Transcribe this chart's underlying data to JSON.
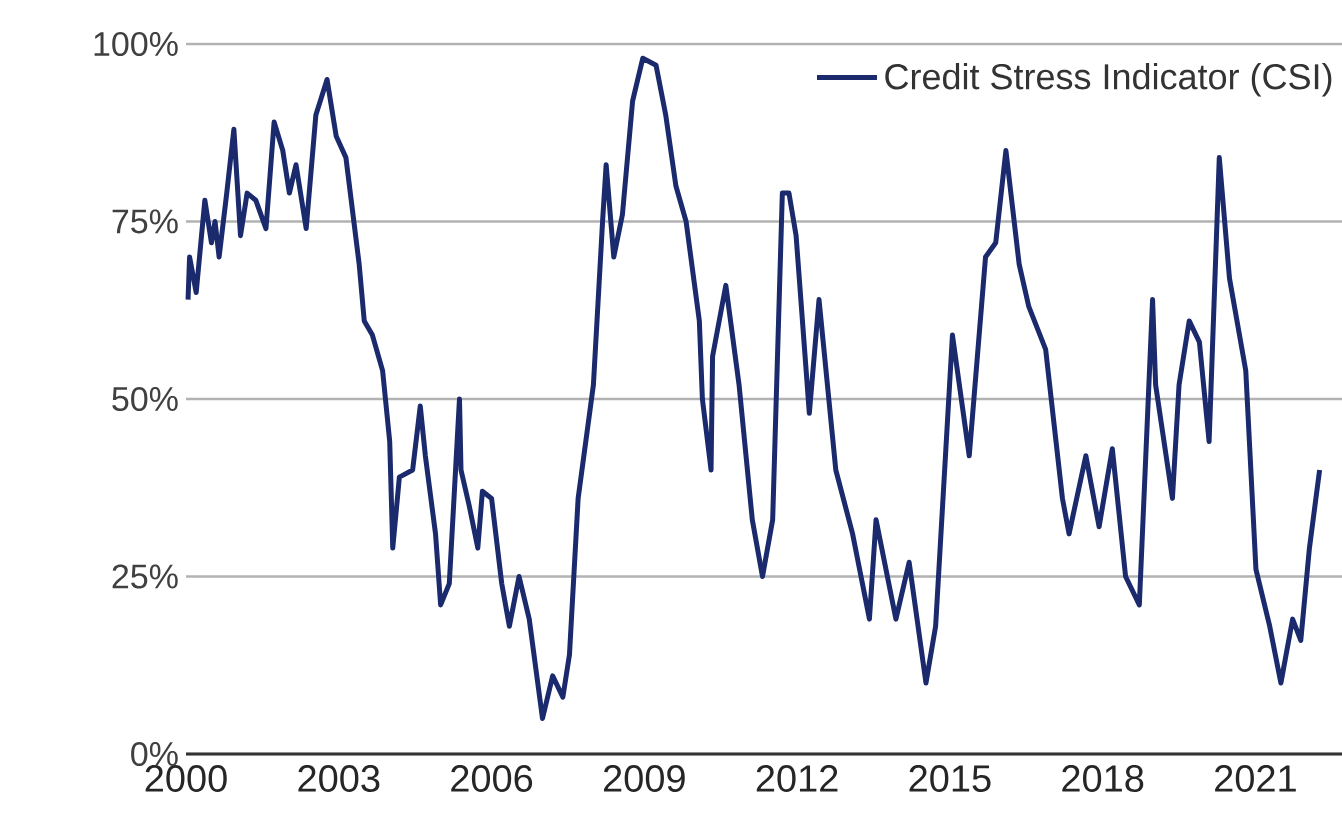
{
  "chart_data": {
    "type": "line",
    "xlim": [
      2000,
      2022.7
    ],
    "ylim": [
      0,
      100
    ],
    "xticks": [
      2000,
      2003,
      2006,
      2009,
      2012,
      2015,
      2018,
      2021
    ],
    "yticks": [
      {
        "value": 0,
        "label": "0%"
      },
      {
        "value": 25,
        "label": "25%"
      },
      {
        "value": 50,
        "label": "50%"
      },
      {
        "value": 75,
        "label": "75%"
      },
      {
        "value": 100,
        "label": "100%"
      }
    ],
    "grid": "y",
    "legend": "top right",
    "line_style": "solid",
    "marker": "none",
    "series": [
      {
        "name": "Credit Stress Indicator (CSI)",
        "color": "#1a2a6c",
        "x": [
          2000.04,
          2000.07,
          2000.2,
          2000.37,
          2000.5,
          2000.57,
          2000.65,
          2000.8,
          2000.94,
          2001.07,
          2001.2,
          2001.37,
          2001.57,
          2001.73,
          2001.9,
          2002.03,
          2002.16,
          2002.36,
          2002.55,
          2002.77,
          2002.95,
          2003.14,
          2003.4,
          2003.5,
          2003.66,
          2003.86,
          2004.0,
          2004.06,
          2004.19,
          2004.45,
          2004.6,
          2004.7,
          2004.9,
          2005.0,
          2005.17,
          2005.37,
          2005.4,
          2005.56,
          2005.73,
          2005.82,
          2006.0,
          2006.2,
          2006.35,
          2006.54,
          2006.74,
          2007.0,
          2007.2,
          2007.4,
          2007.53,
          2007.7,
          2007.85,
          2008.0,
          2008.18,
          2008.25,
          2008.4,
          2008.57,
          2008.77,
          2008.97,
          2009.23,
          2009.42,
          2009.62,
          2009.82,
          2010.08,
          2010.14,
          2010.31,
          2010.34,
          2010.6,
          2010.86,
          2011.12,
          2011.32,
          2011.52,
          2011.71,
          2011.84,
          2011.98,
          2012.24,
          2012.43,
          2012.76,
          2013.09,
          2013.42,
          2013.55,
          2013.94,
          2014.2,
          2014.53,
          2014.72,
          2015.05,
          2015.38,
          2015.7,
          2015.9,
          2016.1,
          2016.36,
          2016.55,
          2016.88,
          2017.21,
          2017.34,
          2017.67,
          2017.93,
          2018.19,
          2018.45,
          2018.72,
          2018.98,
          2019.04,
          2019.37,
          2019.5,
          2019.7,
          2019.9,
          2020.09,
          2020.29,
          2020.49,
          2020.81,
          2021.01,
          2021.28,
          2021.5,
          2021.73,
          2021.89,
          2022.06,
          2022.26
        ],
        "values": [
          64,
          70,
          65,
          78,
          72,
          75,
          70,
          79,
          88,
          73,
          79,
          78,
          74,
          89,
          85,
          79,
          83,
          74,
          90,
          95,
          87,
          84,
          69,
          61,
          59,
          54,
          44,
          29,
          39,
          40,
          49,
          42,
          31,
          21,
          24,
          50,
          40,
          35,
          29,
          37,
          36,
          24,
          18,
          25,
          19,
          5,
          11,
          8,
          14,
          36,
          44,
          52,
          75,
          83,
          70,
          76,
          92,
          98,
          97,
          90,
          80,
          75,
          61,
          50,
          40,
          56,
          66,
          52,
          33,
          25,
          33,
          79,
          79,
          73,
          48,
          64,
          40,
          31,
          19,
          33,
          19,
          27,
          10,
          18,
          59,
          42,
          70,
          72,
          85,
          69,
          63,
          57,
          36,
          31,
          42,
          32,
          43,
          25,
          21,
          64,
          52,
          36,
          52,
          61,
          58,
          44,
          84,
          67,
          54,
          26,
          18,
          10,
          19,
          16,
          29,
          40
        ]
      }
    ]
  }
}
